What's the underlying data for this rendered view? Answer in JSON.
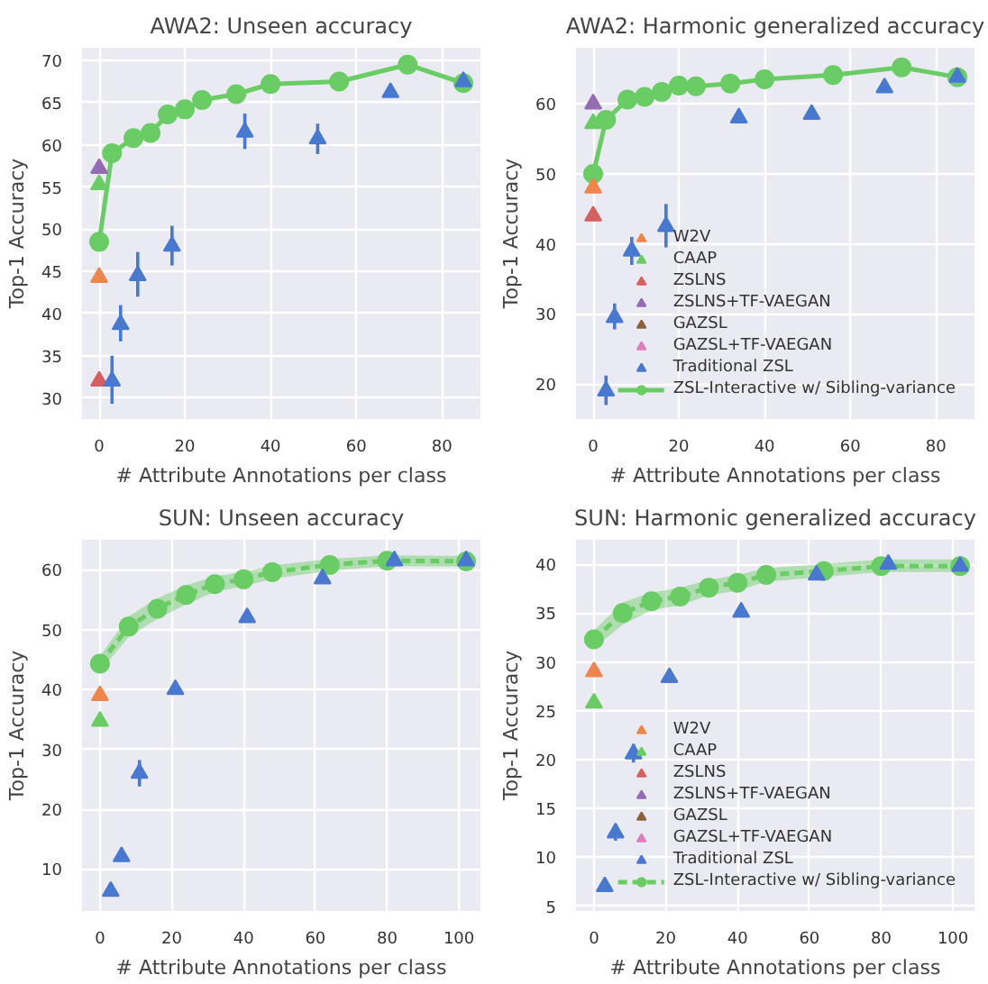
{
  "chart_data": [
    {
      "type": "scatter",
      "title": "AWA2: Unseen accuracy",
      "xlabel": "# Attribute Annotations per class",
      "ylabel": "Top-1 Accuracy",
      "xlim": [
        -4,
        89
      ],
      "ylim": [
        27.5,
        71.5
      ],
      "xticks": [
        0,
        20,
        40,
        60,
        80
      ],
      "yticks": [
        30,
        35,
        40,
        45,
        50,
        55,
        60,
        65,
        70
      ],
      "grid": true,
      "series": [
        {
          "color": "#ee854a",
          "marker": "triangle",
          "x": [
            0
          ],
          "values": [
            44.3
          ]
        },
        {
          "color": "#6acc64",
          "marker": "triangle",
          "x": [
            0
          ],
          "values": [
            55.3
          ]
        },
        {
          "color": "#d65f5f",
          "marker": "triangle",
          "x": [
            0
          ],
          "values": [
            32
          ]
        },
        {
          "color": "#956cb4",
          "marker": "triangle",
          "x": [
            0
          ],
          "values": [
            57.2
          ]
        },
        {
          "color": "#4878d0",
          "marker": "triangle",
          "x": [
            3,
            5,
            9,
            17,
            34,
            51,
            68,
            85
          ],
          "values": [
            32,
            38.7,
            44.5,
            48,
            61.5,
            60.7,
            66.2,
            67.5
          ],
          "errors": [
            [
              29.3,
              35
            ],
            [
              36.7,
              41
            ],
            [
              42,
              47.3
            ],
            [
              45.7,
              50.4
            ],
            [
              59.5,
              63.7
            ],
            [
              58.9,
              62.5
            ],
            null,
            null
          ]
        },
        {
          "type": "line",
          "color": "#6acc64",
          "marker": "circle",
          "line_style": "solid",
          "x": [
            0,
            3,
            8,
            12,
            16,
            20,
            24,
            32,
            40,
            56,
            72,
            85
          ],
          "values": [
            48.5,
            59,
            60.8,
            61.4,
            63.6,
            64.2,
            65.3,
            66,
            67.2,
            67.5,
            69.5,
            67.3
          ]
        }
      ]
    },
    {
      "type": "scatter",
      "title": "AWA2: Harmonic generalized accuracy",
      "xlabel": "# Attribute Annotations per class",
      "ylabel": "Top-1 Accuracy",
      "xlim": [
        -4,
        89
      ],
      "ylim": [
        15,
        68
      ],
      "xticks": [
        0,
        20,
        40,
        60,
        80
      ],
      "yticks": [
        20,
        30,
        40,
        50,
        60
      ],
      "grid": true,
      "legend": "bottom right",
      "series": [
        {
          "name": "W2V",
          "color": "#ee854a",
          "marker": "triangle",
          "x": [
            0
          ],
          "values": [
            48
          ]
        },
        {
          "name": "CAAP",
          "color": "#6acc64",
          "marker": "triangle",
          "x": [
            0
          ],
          "values": [
            57.2
          ]
        },
        {
          "name": "ZSLNS",
          "color": "#d65f5f",
          "marker": "triangle",
          "x": [
            0
          ],
          "values": [
            44
          ]
        },
        {
          "name": "ZSLNS+TF-VAEGAN",
          "color": "#956cb4",
          "marker": "triangle",
          "x": [
            0
          ],
          "values": [
            60
          ]
        },
        {
          "name": "GAZSL",
          "color": "#8c613c",
          "marker": "triangle"
        },
        {
          "name": "GAZSL+TF-VAEGAN",
          "color": "#dc7ec0",
          "marker": "triangle"
        },
        {
          "name": "Traditional ZSL",
          "color": "#4878d0",
          "marker": "triangle",
          "x": [
            3,
            5,
            9,
            17,
            34,
            51,
            68,
            85
          ],
          "values": [
            19,
            29.5,
            39,
            42.5,
            58,
            58.5,
            62.3,
            63.8
          ],
          "errors": [
            [
              17,
              21.2
            ],
            [
              27.8,
              31.5
            ],
            [
              37,
              41
            ],
            [
              39.5,
              45.7
            ],
            null,
            null,
            null,
            null
          ]
        },
        {
          "name": "ZSL-Interactive w/ Sibling-variance",
          "type": "line",
          "color": "#6acc64",
          "marker": "circle",
          "line_style": "solid",
          "x": [
            0,
            3,
            8,
            12,
            16,
            20,
            24,
            32,
            40,
            56,
            72,
            85
          ],
          "values": [
            50,
            57.7,
            60.6,
            61,
            61.7,
            62.6,
            62.5,
            62.9,
            63.5,
            64.1,
            65.2,
            63.8
          ]
        }
      ]
    },
    {
      "type": "scatter",
      "title": "SUN: Unseen accuracy",
      "xlabel": "# Attribute Annotations per class",
      "ylabel": "Top-1 Accuracy",
      "xlim": [
        -5,
        106
      ],
      "ylim": [
        3,
        65
      ],
      "xticks": [
        0,
        20,
        40,
        60,
        80,
        100
      ],
      "yticks": [
        10,
        20,
        30,
        40,
        50,
        60
      ],
      "grid": true,
      "series": [
        {
          "color": "#ee854a",
          "marker": "triangle",
          "x": [
            0
          ],
          "values": [
            39
          ]
        },
        {
          "color": "#6acc64",
          "marker": "triangle",
          "x": [
            0
          ],
          "values": [
            34.7
          ]
        },
        {
          "color": "#4878d0",
          "marker": "triangle",
          "x": [
            3,
            6,
            11,
            21,
            41,
            62,
            82,
            102
          ],
          "values": [
            6.3,
            12.1,
            26,
            40,
            52,
            58.5,
            61.5,
            61.5
          ],
          "errors": [
            null,
            null,
            [
              23.8,
              28.2
            ],
            null,
            null,
            null,
            null,
            null
          ]
        },
        {
          "type": "line",
          "color": "#6acc64",
          "marker": "circle",
          "line_style": "dashed",
          "x": [
            0,
            8,
            16,
            24,
            32,
            40,
            48,
            64,
            80,
            102
          ],
          "values": [
            44.3,
            50.5,
            53.5,
            55.8,
            57.6,
            58.4,
            59.6,
            60.8,
            61.5,
            61.4
          ],
          "lower": [
            43,
            48.8,
            51.8,
            54.2,
            56.3,
            57.2,
            58.5,
            59.8,
            60.6,
            60.5
          ],
          "upper": [
            45.6,
            52.2,
            55.2,
            57.4,
            58.9,
            59.6,
            60.7,
            61.8,
            62.4,
            62.3
          ]
        }
      ]
    },
    {
      "type": "scatter",
      "title": "SUN: Harmonic generalized accuracy",
      "xlabel": "# Attribute Annotations per class",
      "ylabel": "Top-1 Accuracy",
      "xlim": [
        -5,
        106
      ],
      "ylim": [
        4.5,
        42.5
      ],
      "xticks": [
        0,
        20,
        40,
        60,
        80,
        100
      ],
      "yticks": [
        5,
        10,
        15,
        20,
        25,
        30,
        35,
        40
      ],
      "grid": true,
      "legend": "bottom right",
      "series": [
        {
          "name": "W2V",
          "color": "#ee854a",
          "marker": "triangle",
          "x": [
            0
          ],
          "values": [
            29
          ]
        },
        {
          "name": "CAAP",
          "color": "#6acc64",
          "marker": "triangle",
          "x": [
            0
          ],
          "values": [
            25.8
          ]
        },
        {
          "name": "ZSLNS",
          "color": "#d65f5f",
          "marker": "triangle"
        },
        {
          "name": "ZSLNS+TF-VAEGAN",
          "color": "#956cb4",
          "marker": "triangle"
        },
        {
          "name": "GAZSL",
          "color": "#8c613c",
          "marker": "triangle"
        },
        {
          "name": "GAZSL+TF-VAEGAN",
          "color": "#dc7ec0",
          "marker": "triangle"
        },
        {
          "name": "Traditional ZSL",
          "color": "#4878d0",
          "marker": "triangle",
          "x": [
            3,
            6,
            11,
            21,
            41,
            62,
            82,
            102
          ],
          "values": [
            7,
            12.5,
            20.6,
            28.4,
            35.1,
            38.9,
            40,
            39.8
          ],
          "errors": [
            null,
            [
              11.7,
              13.4
            ],
            [
              19.7,
              21.6
            ],
            null,
            null,
            null,
            null,
            null
          ]
        },
        {
          "name": "ZSL-Interactive w/ Sibling-variance",
          "type": "line",
          "color": "#6acc64",
          "marker": "circle",
          "line_style": "dashed",
          "x": [
            0,
            8,
            16,
            24,
            32,
            40,
            48,
            64,
            80,
            102
          ],
          "values": [
            32.3,
            35,
            36.2,
            36.7,
            37.6,
            38.1,
            38.9,
            39.3,
            39.8,
            39.8
          ],
          "lower": [
            31.4,
            33.8,
            35.3,
            35.8,
            36.8,
            37.3,
            38.2,
            38.7,
            39.2,
            39.2
          ],
          "upper": [
            33.2,
            36.1,
            37.1,
            37.6,
            38.4,
            38.9,
            39.6,
            40,
            40.5,
            40.5
          ]
        }
      ]
    }
  ]
}
